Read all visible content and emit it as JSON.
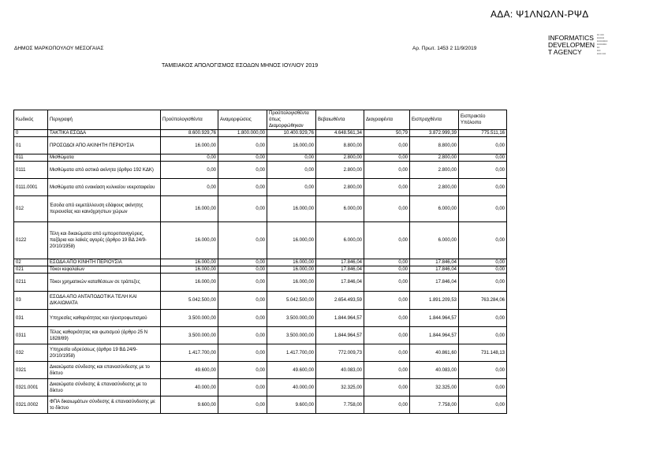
{
  "stamp": {
    "ada": "ΑΔΑ: Ψ1ΛΝΩΛΝ-ΡΨΔ"
  },
  "signature": {
    "lines": [
      "INFORMATICS",
      "DEVELOPMEN",
      "T AGENCY"
    ]
  },
  "header": {
    "municipality": "ΔΗΜΟΣ ΜΑΡΚΟΠΟΥΛΟΥ ΜΕΣΟΓΑΙΑΣ",
    "protocol": "Αρ. Πρωτ. 1453 2 11/9/2019",
    "title": "ΤΑΜΕΙΑΚΟΣ ΑΠΟΛΟΓΙΣΜΟΣ ΕΣΟΔΩΝ ΜΗΝΟΣ ΙΟΥΛΙΟΥ 2019"
  },
  "table": {
    "columns": [
      "Κωδικός",
      "Περιγραφή",
      "Προϋπολογισθέντα",
      "Αναμορφώσεις",
      "Προϋπολογισθέντα όπως Διαμορφώθηκαν",
      "Βεβαιωθέντα",
      "Διαγραφέντα",
      "Εισπραχθέντα",
      "Εισπρακτέο Υπόλοιπο"
    ],
    "rows": [
      [
        "0",
        "ΤΑΚΤΙΚΑ ΕΣΟΔΑ",
        "8.600.929,76",
        "1.800.000,00",
        "10.400.929,76",
        "4.648.561,34",
        "50,79",
        "3.872.999,39",
        "775.511,16"
      ],
      [
        "01",
        "ΠΡΟΣΟΔΟΙ ΑΠΟ ΑΚΙΝΗΤΗ ΠΕΡΙΟΥΣΙΑ",
        "16.000,00",
        "0,00",
        "16.000,00",
        "8.800,00",
        "0,00",
        "8.800,00",
        "0,00"
      ],
      [
        "011",
        "Μισθώματα",
        "0,00",
        "0,00",
        "0,00",
        "2.800,00",
        "0,00",
        "2.800,00",
        "0,00"
      ],
      [
        "0111",
        "Μισθώματα από αστικά ακίνητα (άρθρο 192 ΚΔΚ)",
        "0,00",
        "0,00",
        "0,00",
        "2.800,00",
        "0,00",
        "2.800,00",
        "0,00"
      ],
      [
        "0111.0001",
        "Μισθώματα από ενοικίαση κυλικείου νεκροταφείου",
        "0,00",
        "0,00",
        "0,00",
        "2.800,00",
        "0,00",
        "2.800,00",
        "0,00"
      ],
      [
        "012",
        "Έσοδα από εκμετάλλευση εδάφους ακίνητης περιουσίας και καινόχρηστων χώρων",
        "16.000,00",
        "0,00",
        "16.000,00",
        "6.000,00",
        "0,00",
        "6.000,00",
        "0,00"
      ],
      [
        "0122",
        "Τέλη και δικαιώματα από εμποροπανηγύρεις, παζάρια και λαϊκές αγορές (άρθρο 19 ΒΔ 24/9-20/10/1958)",
        "16.000,00",
        "0,00",
        "16.000,00",
        "6.000,00",
        "0,00",
        "6.000,00",
        "0,00"
      ],
      [
        "02",
        "ΕΣΟΔΑ ΑΠΟ ΚΙΝΗΤΗ ΠΕΡΙΟΥΣΙΑ",
        "16.000,00",
        "0,00",
        "16.000,00",
        "17.846,04",
        "0,00",
        "17.846,04",
        "0,00"
      ],
      [
        "021",
        "Τόκοι κεφαλαίων",
        "16.000,00",
        "0,00",
        "16.000,00",
        "17.846,04",
        "0,00",
        "17.846,04",
        "0,00"
      ],
      [
        "0211",
        "Τόκοι χρηματικών καταθέσεων σε τράπεζες",
        "16.000,00",
        "0,00",
        "16.000,00",
        "17.846,04",
        "0,00",
        "17.846,04",
        "0,00"
      ],
      [
        "03",
        "ΕΣΟΔΑ ΑΠΟ ΑΝΤΑΠΟΔΟΤΙΚΑ ΤΕΛΗ ΚΑΙ ΔΙΚΑΙΩΜΑΤΑ",
        "5.042.500,00",
        "0,00",
        "5.042.500,00",
        "2.654.493,59",
        "0,00",
        "1.891.209,53",
        "763.284,06"
      ],
      [
        "031",
        "Υπηρεσίες καθαριότητας και ηλεκτροφωτισμού",
        "3.500.000,00",
        "0,00",
        "3.500.000,00",
        "1.844.964,57",
        "0,00",
        "1.844.964,57",
        "0,00"
      ],
      [
        "0311",
        "Τέλος καθαριότητας και φωτισμού (άρθρο 25 Ν 1828/89)",
        "3.500.000,00",
        "0,00",
        "3.500.000,00",
        "1.844.964,57",
        "0,00",
        "1.844.964,57",
        "0,00"
      ],
      [
        "032",
        "Υπηρεσία υδρεύσεως (άρθρο 19 ΒΔ 24/9-20/10/1958)",
        "1.417.700,00",
        "0,00",
        "1.417.700,00",
        "772.009,73",
        "0,00",
        "40.861,60",
        "731.148,13"
      ],
      [
        "0321",
        "Δικαιώματα σύνδεσης και επανασύνδεσης με το δίκτυο",
        "49.600,00",
        "0,00",
        "49.600,00",
        "40.083,00",
        "0,00",
        "40.083,00",
        "0,00"
      ],
      [
        "0321.0001",
        "Δικαιώματα σύνδεσης & επανασύνδεσης με το δίκτυο",
        "40.000,00",
        "0,00",
        "40.000,00",
        "32.325,00",
        "0,00",
        "32.325,00",
        "0,00"
      ],
      [
        "0321.0002",
        "ΦΠΑ δικαιωμάτων σύνδεσης & επανασύνδεσης με το δίκτυο",
        "9.600,00",
        "0,00",
        "9.600,00",
        "7.758,00",
        "0,00",
        "7.758,00",
        "0,00"
      ]
    ]
  }
}
